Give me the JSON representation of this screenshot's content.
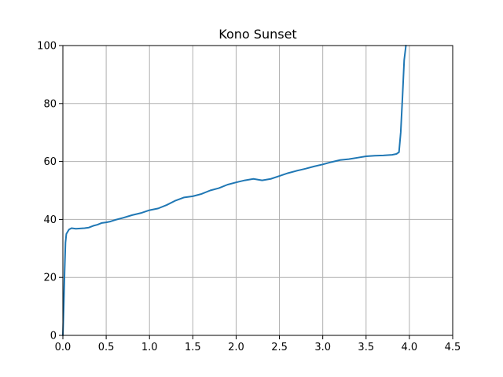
{
  "chart_data": {
    "type": "line",
    "title": "Kono Sunset",
    "xlabel": "",
    "ylabel": "",
    "xlim": [
      0,
      4.5
    ],
    "ylim": [
      0,
      100
    ],
    "grid": true,
    "x_ticks": [
      0.0,
      0.5,
      1.0,
      1.5,
      2.0,
      2.5,
      3.0,
      3.5,
      4.0,
      4.5
    ],
    "x_tick_labels": [
      "0.0",
      "0.5",
      "1.0",
      "1.5",
      "2.0",
      "2.5",
      "3.0",
      "3.5",
      "4.0",
      "4.5"
    ],
    "y_ticks": [
      0,
      20,
      40,
      60,
      80,
      100
    ],
    "y_tick_labels": [
      "0",
      "20",
      "40",
      "60",
      "80",
      "100"
    ],
    "colors": {
      "series": "#1f77b4",
      "grid": "#b0b0b0"
    },
    "series": [
      {
        "x": [
          0.0,
          0.01,
          0.02,
          0.03,
          0.04,
          0.05,
          0.07,
          0.1,
          0.15,
          0.2,
          0.25,
          0.3,
          0.35,
          0.4,
          0.45,
          0.5,
          0.55,
          0.6,
          0.7,
          0.8,
          0.9,
          1.0,
          1.1,
          1.2,
          1.3,
          1.4,
          1.5,
          1.6,
          1.7,
          1.8,
          1.9,
          2.0,
          2.1,
          2.2,
          2.3,
          2.4,
          2.5,
          2.6,
          2.7,
          2.8,
          2.9,
          3.0,
          3.1,
          3.2,
          3.3,
          3.4,
          3.5,
          3.6,
          3.7,
          3.8,
          3.85,
          3.88,
          3.9,
          3.92,
          3.94,
          3.96
        ],
        "y": [
          0,
          10,
          22,
          32,
          35,
          35.5,
          36.5,
          37,
          36.8,
          36.9,
          37,
          37.2,
          37.8,
          38.2,
          38.8,
          39.0,
          39.3,
          39.8,
          40.6,
          41.5,
          42.2,
          43.2,
          43.8,
          45.0,
          46.5,
          47.6,
          48.0,
          48.8,
          50.0,
          50.8,
          52.0,
          52.8,
          53.5,
          54.0,
          53.5,
          54.0,
          55.0,
          56.0,
          56.8,
          57.5,
          58.3,
          59.0,
          59.8,
          60.5,
          60.8,
          61.3,
          61.8,
          62.0,
          62.1,
          62.3,
          62.6,
          63.2,
          70,
          82,
          95,
          100
        ]
      }
    ]
  }
}
